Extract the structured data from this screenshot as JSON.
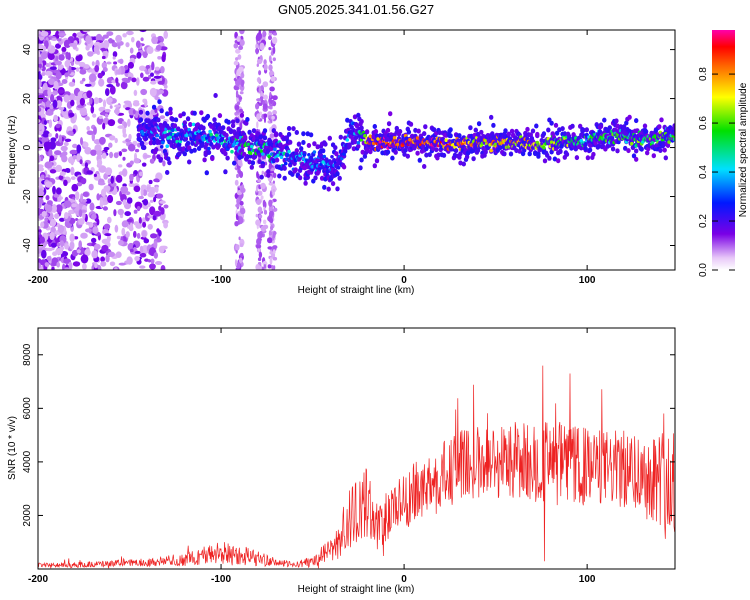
{
  "title": "GN05.2025.341.01.56.G27",
  "chart_data": [
    {
      "type": "heatmap",
      "xlabel": "Height of straight line (km)",
      "ylabel": "Frequency (Hz)",
      "xlim": [
        -200,
        148
      ],
      "ylim": [
        -50,
        48
      ],
      "xticks": [
        -200,
        -100,
        0,
        100
      ],
      "yticks": [
        -40,
        -20,
        0,
        20,
        40
      ],
      "colorbar": {
        "label": "Normalized spectral amplitude",
        "range": [
          0,
          0.98
        ],
        "ticks": [
          "0.0",
          "0.2",
          "0.4",
          "0.6",
          "0.8"
        ],
        "colormap": "rainbow (white-violet-blue-cyan-green-yellow-orange-red-magenta)"
      },
      "ridge": {
        "x": [
          -145,
          -130,
          -120,
          -110,
          -100,
          -90,
          -80,
          -70,
          -62,
          -55,
          -45,
          -37,
          -32,
          -28,
          -25,
          -20,
          -10,
          0,
          10,
          20,
          30,
          40,
          50,
          60,
          70,
          80,
          90,
          100,
          110,
          120,
          130,
          140,
          148
        ],
        "freq": [
          7,
          5,
          5,
          4,
          3,
          2,
          0,
          -2,
          -4,
          -5,
          -7,
          -8,
          0,
          9,
          5,
          2,
          2,
          2,
          2,
          2,
          1,
          2,
          2,
          2,
          1,
          2,
          2,
          3,
          4,
          5,
          3,
          4,
          5
        ],
        "amplitude": [
          0.25,
          0.35,
          0.35,
          0.4,
          0.4,
          0.45,
          0.5,
          0.45,
          0.35,
          0.4,
          0.35,
          0.3,
          0.3,
          0.3,
          0.35,
          0.85,
          0.9,
          0.9,
          0.9,
          0.85,
          0.8,
          0.75,
          0.75,
          0.75,
          0.7,
          0.65,
          0.6,
          0.5,
          0.55,
          0.55,
          0.55,
          0.55,
          0.55
        ]
      }
    },
    {
      "type": "line",
      "xlabel": "Height of straight line (km)",
      "ylabel": "SNR (10 * v/v)",
      "xlim": [
        -200,
        148
      ],
      "ylim": [
        0,
        9000
      ],
      "xticks": [
        -200,
        -100,
        0,
        100
      ],
      "yticks": [
        2000,
        4000,
        6000,
        8000
      ],
      "color": "#ee2222",
      "series": [
        {
          "name": "SNR",
          "x": [
            -200,
            -180,
            -160,
            -140,
            -120,
            -110,
            -100,
            -90,
            -80,
            -70,
            -60,
            -50,
            -40,
            -35,
            -30,
            -25,
            -20,
            -15,
            -10,
            0,
            10,
            20,
            30,
            40,
            50,
            60,
            70,
            80,
            90,
            100,
            110,
            120,
            130,
            140,
            145,
            148
          ],
          "base": [
            150,
            150,
            200,
            250,
            350,
            500,
            600,
            550,
            400,
            250,
            150,
            300,
            700,
            1200,
            1800,
            2200,
            2500,
            1600,
            2000,
            2600,
            3000,
            3400,
            3800,
            4000,
            4000,
            4100,
            4000,
            4000,
            3900,
            3800,
            3800,
            3700,
            3600,
            3400,
            3200,
            2800
          ],
          "noise": [
            80,
            100,
            120,
            150,
            250,
            350,
            450,
            400,
            300,
            150,
            100,
            200,
            500,
            800,
            1200,
            1300,
            1300,
            900,
            1000,
            1100,
            1200,
            1300,
            1400,
            1400,
            1400,
            1500,
            1500,
            1600,
            1500,
            1500,
            1400,
            1500,
            1500,
            1800,
            2500,
            2200
          ]
        }
      ]
    }
  ]
}
